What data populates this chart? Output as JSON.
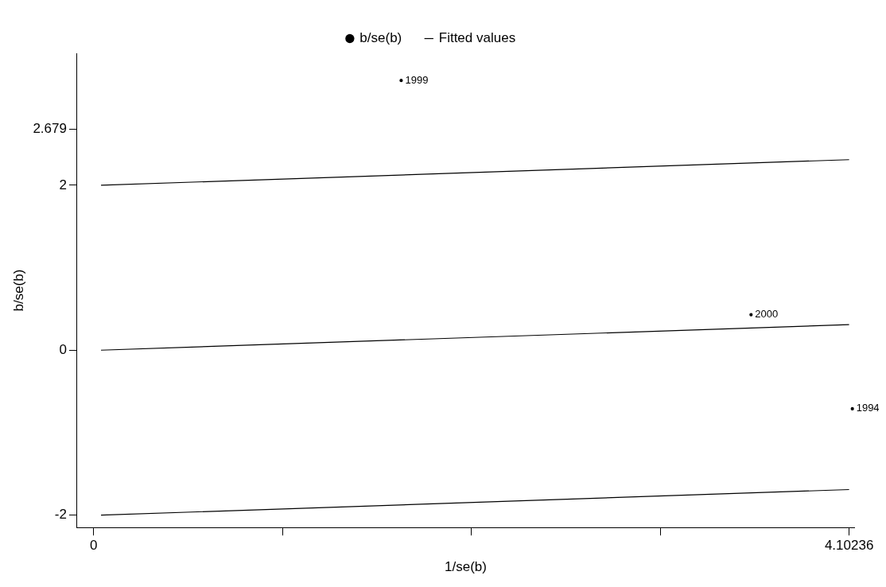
{
  "chart_data": {
    "type": "line",
    "xlabel": "1/se(b)",
    "ylabel": "b/se(b)",
    "xlim": [
      -0.09,
      4.13
    ],
    "xticks": [
      0,
      {
        "value": 1.026,
        "label": null
      },
      {
        "value": 2.051,
        "label": null
      },
      {
        "value": 3.077,
        "label": null
      },
      4.10236
    ],
    "ylim": [
      -2.15,
      3.6
    ],
    "yticks": [
      -2,
      0,
      2,
      2.679
    ],
    "annotations": [
      {
        "text": "1999",
        "x": 1.67,
        "y": 3.27
      },
      {
        "text": "2000",
        "x": 3.57,
        "y": 0.43
      },
      {
        "text": "1994",
        "x": 4.12,
        "y": -0.71
      }
    ],
    "grid": false,
    "legend": "top",
    "line_style": "solid",
    "series": [
      {
        "name": "b/se(b)",
        "type": "scatter",
        "marker": "circle",
        "color": "#000000",
        "x": [
          1.67,
          3.57,
          4.12
        ],
        "values": [
          3.27,
          0.43,
          -0.71
        ]
      },
      {
        "name": "Fitted values",
        "type": "line",
        "marker": "none",
        "color": "#000000",
        "x": [
          0.04,
          4.10236
        ],
        "values": [
          0,
          0.31
        ]
      },
      {
        "type": "line",
        "marker": "none",
        "color": "#000000",
        "x": [
          0.04,
          4.10236
        ],
        "values": [
          2,
          2.31
        ]
      },
      {
        "type": "line",
        "marker": "none",
        "color": "#000000",
        "x": [
          0.04,
          4.10236
        ],
        "values": [
          -2,
          -1.69
        ]
      }
    ]
  }
}
